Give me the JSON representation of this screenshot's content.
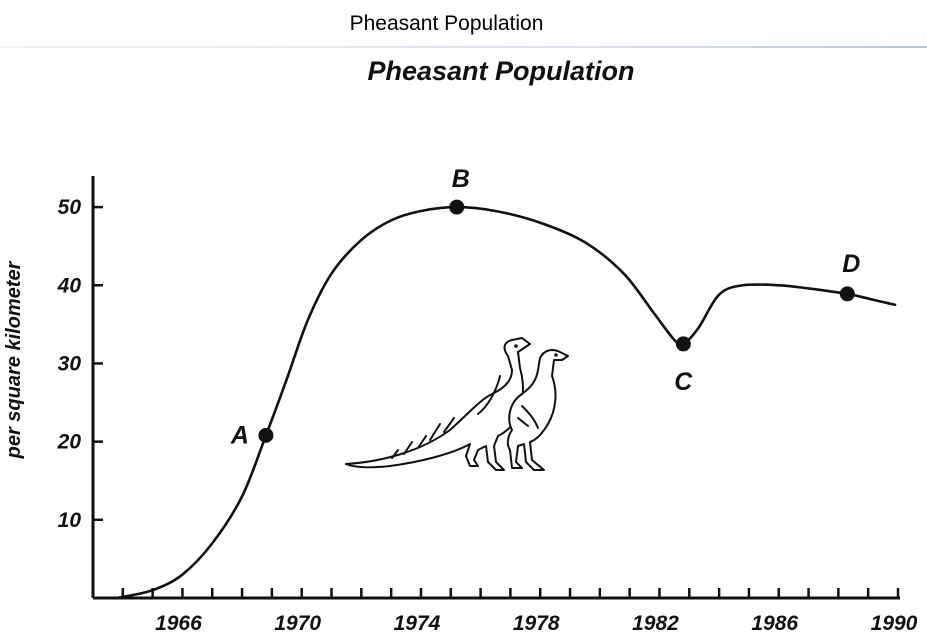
{
  "header": {
    "title": "Pheasant Population"
  },
  "chart_data": {
    "type": "line",
    "title": "Pheasant Population",
    "xlabel": "",
    "ylabel": "per square kilometer",
    "xlim": [
      1963,
      1990
    ],
    "ylim": [
      0,
      55
    ],
    "x_ticks": [
      1966,
      1970,
      1974,
      1978,
      1982,
      1986,
      1990
    ],
    "y_ticks": [
      10,
      20,
      30,
      40,
      50
    ],
    "grid": false,
    "series": [
      {
        "x": [
          1963.8,
          1965,
          1966,
          1967,
          1968,
          1968.8,
          1969.5,
          1970.2,
          1971,
          1972,
          1973,
          1974,
          1975.2,
          1976.5,
          1978,
          1979.5,
          1980.8,
          1981.8,
          1982.5,
          1982.8,
          1983.3,
          1984,
          1984.8,
          1986,
          1987,
          1988.3,
          1989,
          1989.9
        ],
        "y": [
          0,
          1,
          3,
          7,
          13,
          20.8,
          28,
          35.5,
          41.5,
          45.8,
          48.3,
          49.5,
          50,
          49.5,
          48,
          45.5,
          41.5,
          36.5,
          33,
          32.5,
          34.5,
          38.8,
          40,
          40,
          39.6,
          38.9,
          38.3,
          37.5
        ]
      }
    ],
    "points": [
      {
        "label": "A",
        "x": 1968.8,
        "y": 20.8
      },
      {
        "label": "B",
        "x": 1975.2,
        "y": 50
      },
      {
        "label": "C",
        "x": 1982.8,
        "y": 32.5
      },
      {
        "label": "D",
        "x": 1988.3,
        "y": 38.9
      }
    ]
  }
}
